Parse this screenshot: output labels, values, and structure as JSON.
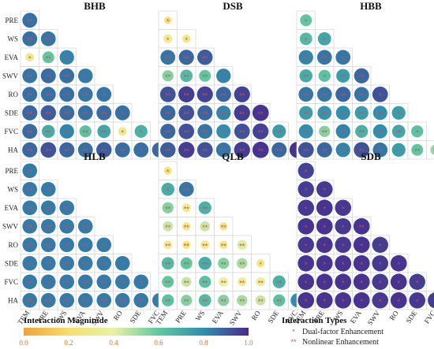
{
  "chart_data": {
    "type": "heatmap",
    "factors": [
      "PRE",
      "WS",
      "EVA",
      "SWV",
      "RO",
      "SDE",
      "FVC",
      "HA"
    ],
    "col_factors": [
      "TEM",
      "PRE",
      "WS",
      "EVA",
      "SWV",
      "RO",
      "SDE",
      "FVC"
    ],
    "enhancement_codes": {
      "1": "Dual-factor Enhancement",
      "2": "Nonlinear Enhancement"
    },
    "panels": [
      {
        "title": "BHB",
        "values": [
          [
            0.86
          ],
          [
            0.86,
            0.85
          ],
          [
            0.32,
            0.6,
            0.82
          ],
          [
            0.85,
            0.87,
            0.86,
            0.84
          ],
          [
            0.86,
            0.86,
            0.86,
            0.85,
            0.85
          ],
          [
            0.88,
            0.9,
            0.87,
            0.86,
            0.87,
            0.86
          ],
          [
            0.87,
            0.7,
            0.82,
            0.62,
            0.72,
            0.33,
            0.68
          ],
          [
            0.88,
            0.92,
            0.88,
            0.86,
            0.9,
            0.87,
            0.86,
            0.88
          ]
        ],
        "types": [
          [
            2
          ],
          [
            2,
            2
          ],
          [
            1,
            2,
            2
          ],
          [
            2,
            2,
            2,
            1
          ],
          [
            2,
            2,
            2,
            2,
            1
          ],
          [
            2,
            2,
            2,
            2,
            2,
            1
          ],
          [
            2,
            2,
            2,
            2,
            2,
            1,
            1
          ],
          [
            2,
            2,
            2,
            2,
            2,
            2,
            1,
            1
          ]
        ]
      },
      {
        "title": "DSB",
        "values": [
          [
            0.22
          ],
          [
            0.35,
            0.3
          ],
          [
            0.85,
            0.88,
            0.9
          ],
          [
            0.55,
            0.65,
            0.6,
            0.82
          ],
          [
            0.92,
            0.96,
            0.95,
            0.88,
            0.95
          ],
          [
            0.88,
            0.92,
            0.88,
            0.82,
            0.96,
            0.98
          ],
          [
            0.88,
            0.92,
            0.85,
            0.8,
            0.92,
            0.95,
            0.75
          ],
          [
            0.9,
            0.96,
            0.92,
            0.85,
            0.96,
            0.98,
            0.88,
            0.98
          ]
        ],
        "types": [
          [
            1
          ],
          [
            1,
            1
          ],
          [
            2,
            2,
            2
          ],
          [
            2,
            2,
            2,
            2
          ],
          [
            2,
            2,
            2,
            2,
            2
          ],
          [
            2,
            2,
            2,
            2,
            2,
            2
          ],
          [
            2,
            2,
            2,
            2,
            2,
            2,
            2
          ],
          [
            2,
            2,
            2,
            2,
            2,
            2,
            2,
            2
          ]
        ]
      },
      {
        "title": "HBB",
        "values": [
          [
            0.6
          ],
          [
            0.65,
            0.72
          ],
          [
            0.82,
            0.85,
            0.85
          ],
          [
            0.7,
            0.62,
            0.75,
            0.88
          ],
          [
            0.85,
            0.85,
            0.88,
            0.85,
            0.92
          ],
          [
            0.75,
            0.78,
            0.8,
            0.75,
            0.8,
            0.75
          ],
          [
            0.8,
            0.55,
            0.82,
            0.68,
            0.8,
            0.72,
            0.62
          ],
          [
            0.92,
            0.88,
            0.82,
            0.92,
            0.85,
            0.75,
            0.6,
            0.52
          ]
        ],
        "types": [
          [
            1
          ],
          [
            1,
            1
          ],
          [
            2,
            2,
            1
          ],
          [
            2,
            1,
            2,
            2
          ],
          [
            2,
            2,
            2,
            2,
            1
          ],
          [
            2,
            2,
            2,
            2,
            2,
            1
          ],
          [
            2,
            2,
            2,
            2,
            2,
            2,
            1
          ],
          [
            2,
            2,
            2,
            2,
            2,
            2,
            2,
            2
          ]
        ]
      },
      {
        "title": "HLB",
        "values": [
          [
            0.84
          ],
          [
            0.84,
            0.84
          ],
          [
            0.84,
            0.84,
            0.84
          ],
          [
            0.84,
            0.84,
            0.84,
            0.84
          ],
          [
            0.84,
            0.84,
            0.84,
            0.84,
            0.84
          ],
          [
            0.84,
            0.84,
            0.84,
            0.84,
            0.84,
            0.84
          ],
          [
            0.84,
            0.84,
            0.84,
            0.84,
            0.84,
            0.84,
            0.84
          ],
          [
            0.84,
            0.84,
            0.84,
            0.84,
            0.84,
            0.84,
            0.84,
            0.84
          ]
        ],
        "types": [
          [
            1
          ],
          [
            2,
            2
          ],
          [
            2,
            2,
            2
          ],
          [
            2,
            2,
            2,
            2
          ],
          [
            2,
            2,
            2,
            2,
            1
          ],
          [
            2,
            2,
            2,
            2,
            2,
            1
          ],
          [
            2,
            2,
            2,
            2,
            2,
            2,
            1
          ],
          [
            2,
            2,
            2,
            2,
            2,
            2,
            2,
            1
          ]
        ]
      },
      {
        "title": "QLB",
        "values": [
          [
            0.25
          ],
          [
            0.7,
            0.85
          ],
          [
            0.55,
            0.35,
            0.68
          ],
          [
            0.45,
            0.3,
            0.45,
            0.28
          ],
          [
            0.35,
            0.28,
            0.35,
            0.3,
            0.42
          ],
          [
            0.65,
            0.6,
            0.7,
            0.55,
            0.5,
            0.3
          ],
          [
            0.6,
            0.45,
            0.62,
            0.4,
            0.35,
            0.38,
            0.68
          ],
          [
            0.62,
            0.55,
            0.65,
            0.55,
            0.5,
            0.45,
            0.62,
            0.8
          ]
        ],
        "types": [
          [
            1
          ],
          [
            1,
            2
          ],
          [
            2,
            2,
            2
          ],
          [
            2,
            2,
            2,
            2
          ],
          [
            2,
            2,
            2,
            2,
            2
          ],
          [
            2,
            2,
            2,
            2,
            2,
            1
          ],
          [
            2,
            2,
            2,
            2,
            2,
            2,
            2
          ],
          [
            2,
            2,
            2,
            2,
            2,
            2,
            2,
            2
          ]
        ]
      },
      {
        "title": "SDB",
        "values": [
          [
            0.95
          ],
          [
            0.96,
            0.97
          ],
          [
            0.97,
            0.98,
            0.97
          ],
          [
            0.98,
            0.98,
            0.97,
            0.98
          ],
          [
            0.97,
            0.98,
            0.97,
            0.98,
            0.96
          ],
          [
            0.98,
            0.98,
            0.98,
            0.98,
            0.97,
            0.98
          ],
          [
            0.98,
            0.98,
            0.98,
            0.98,
            0.97,
            0.98,
            0.96
          ],
          [
            0.98,
            0.98,
            0.98,
            0.98,
            0.97,
            0.98,
            0.97,
            0.96
          ]
        ],
        "types": [
          [
            1
          ],
          [
            1,
            1
          ],
          [
            1,
            1,
            1
          ],
          [
            1,
            1,
            1,
            2
          ],
          [
            1,
            1,
            1,
            1,
            1
          ],
          [
            1,
            1,
            1,
            1,
            1,
            1
          ],
          [
            1,
            1,
            1,
            1,
            1,
            1,
            1
          ],
          [
            1,
            1,
            1,
            1,
            1,
            1,
            1,
            1
          ]
        ]
      }
    ],
    "colorbar": {
      "title": "Interaction Magnitude",
      "range": [
        0,
        1
      ],
      "ticks": [
        "0.0",
        "0.2",
        "0.4",
        "0.6",
        "0.8",
        "1.0"
      ]
    },
    "legend": {
      "title": "Interaction Types",
      "items": [
        {
          "symbol": "*",
          "label": "Dual-factor Enhancement"
        },
        {
          "symbol": "**",
          "label": "Nonlinear Enhancement"
        }
      ]
    }
  }
}
